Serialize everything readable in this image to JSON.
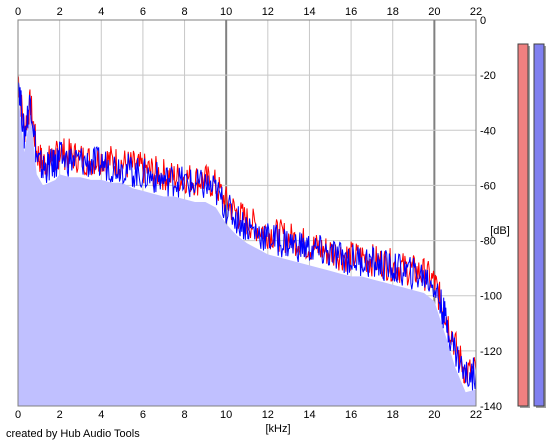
{
  "chart_data": {
    "type": "area",
    "title": "",
    "xlabel": "[kHz]",
    "ylabel": "[dB]",
    "x_ticks": [
      "0",
      "2",
      "4",
      "6",
      "8",
      "10",
      "12",
      "14",
      "16",
      "18",
      "20",
      "22"
    ],
    "y_ticks": [
      "0",
      "-20",
      "-40",
      "-60",
      "-80",
      "-100",
      "-120",
      "-140"
    ],
    "xlim": [
      0,
      22
    ],
    "ylim": [
      -140,
      0
    ],
    "grid": true,
    "series": [
      {
        "color": "#ff0000",
        "x": [
          0,
          0.3,
          0.6,
          0.9,
          1.2,
          1.5,
          1.8,
          2,
          2.5,
          3,
          3.5,
          4,
          4.5,
          5,
          5.5,
          6,
          6.5,
          7,
          7.5,
          8,
          8.5,
          9,
          9.5,
          10,
          10.5,
          11,
          11.5,
          12,
          12.5,
          13,
          13.5,
          14,
          14.5,
          15,
          15.5,
          16,
          16.5,
          17,
          17.5,
          18,
          18.5,
          19,
          19.5,
          20,
          20.3,
          20.6,
          21,
          21.5,
          22
        ],
        "values": [
          -20,
          -40,
          -30,
          -48,
          -52,
          -51,
          -50,
          -48,
          -49,
          -50,
          -51,
          -50,
          -51,
          -52,
          -53,
          -54,
          -55,
          -56,
          -57,
          -57,
          -58,
          -58,
          -60,
          -66,
          -70,
          -73,
          -75,
          -77,
          -78,
          -79,
          -80,
          -82,
          -83,
          -84,
          -85,
          -86,
          -86,
          -87,
          -88,
          -89,
          -90,
          -91,
          -92,
          -95,
          -102,
          -108,
          -118,
          -128,
          -127
        ]
      },
      {
        "color": "#0000ff",
        "x": [
          0,
          0.3,
          0.6,
          0.9,
          1.2,
          1.5,
          1.8,
          2,
          2.5,
          3,
          3.5,
          4,
          4.5,
          5,
          5.5,
          6,
          6.5,
          7,
          7.5,
          8,
          8.5,
          9,
          9.5,
          10,
          10.5,
          11,
          11.5,
          12,
          12.5,
          13,
          13.5,
          14,
          14.5,
          15,
          15.5,
          16,
          16.5,
          17,
          17.5,
          18,
          18.5,
          19,
          19.5,
          20,
          20.3,
          20.6,
          21,
          21.5,
          22
        ],
        "values": [
          -20,
          -42,
          -28,
          -50,
          -54,
          -53,
          -52,
          -50,
          -51,
          -51,
          -52,
          -52,
          -53,
          -53,
          -55,
          -56,
          -57,
          -58,
          -58,
          -59,
          -60,
          -60,
          -62,
          -68,
          -72,
          -75,
          -77,
          -79,
          -80,
          -81,
          -82,
          -83,
          -84,
          -85,
          -86,
          -87,
          -87,
          -88,
          -89,
          -90,
          -91,
          -92,
          -93,
          -96,
          -103,
          -110,
          -120,
          -129,
          -128
        ]
      }
    ],
    "level_meters": [
      {
        "color": "#f08080",
        "level": 1.0
      },
      {
        "color": "#8080f0",
        "level": 1.0
      }
    ]
  },
  "credit": "created by Hub Audio Tools"
}
